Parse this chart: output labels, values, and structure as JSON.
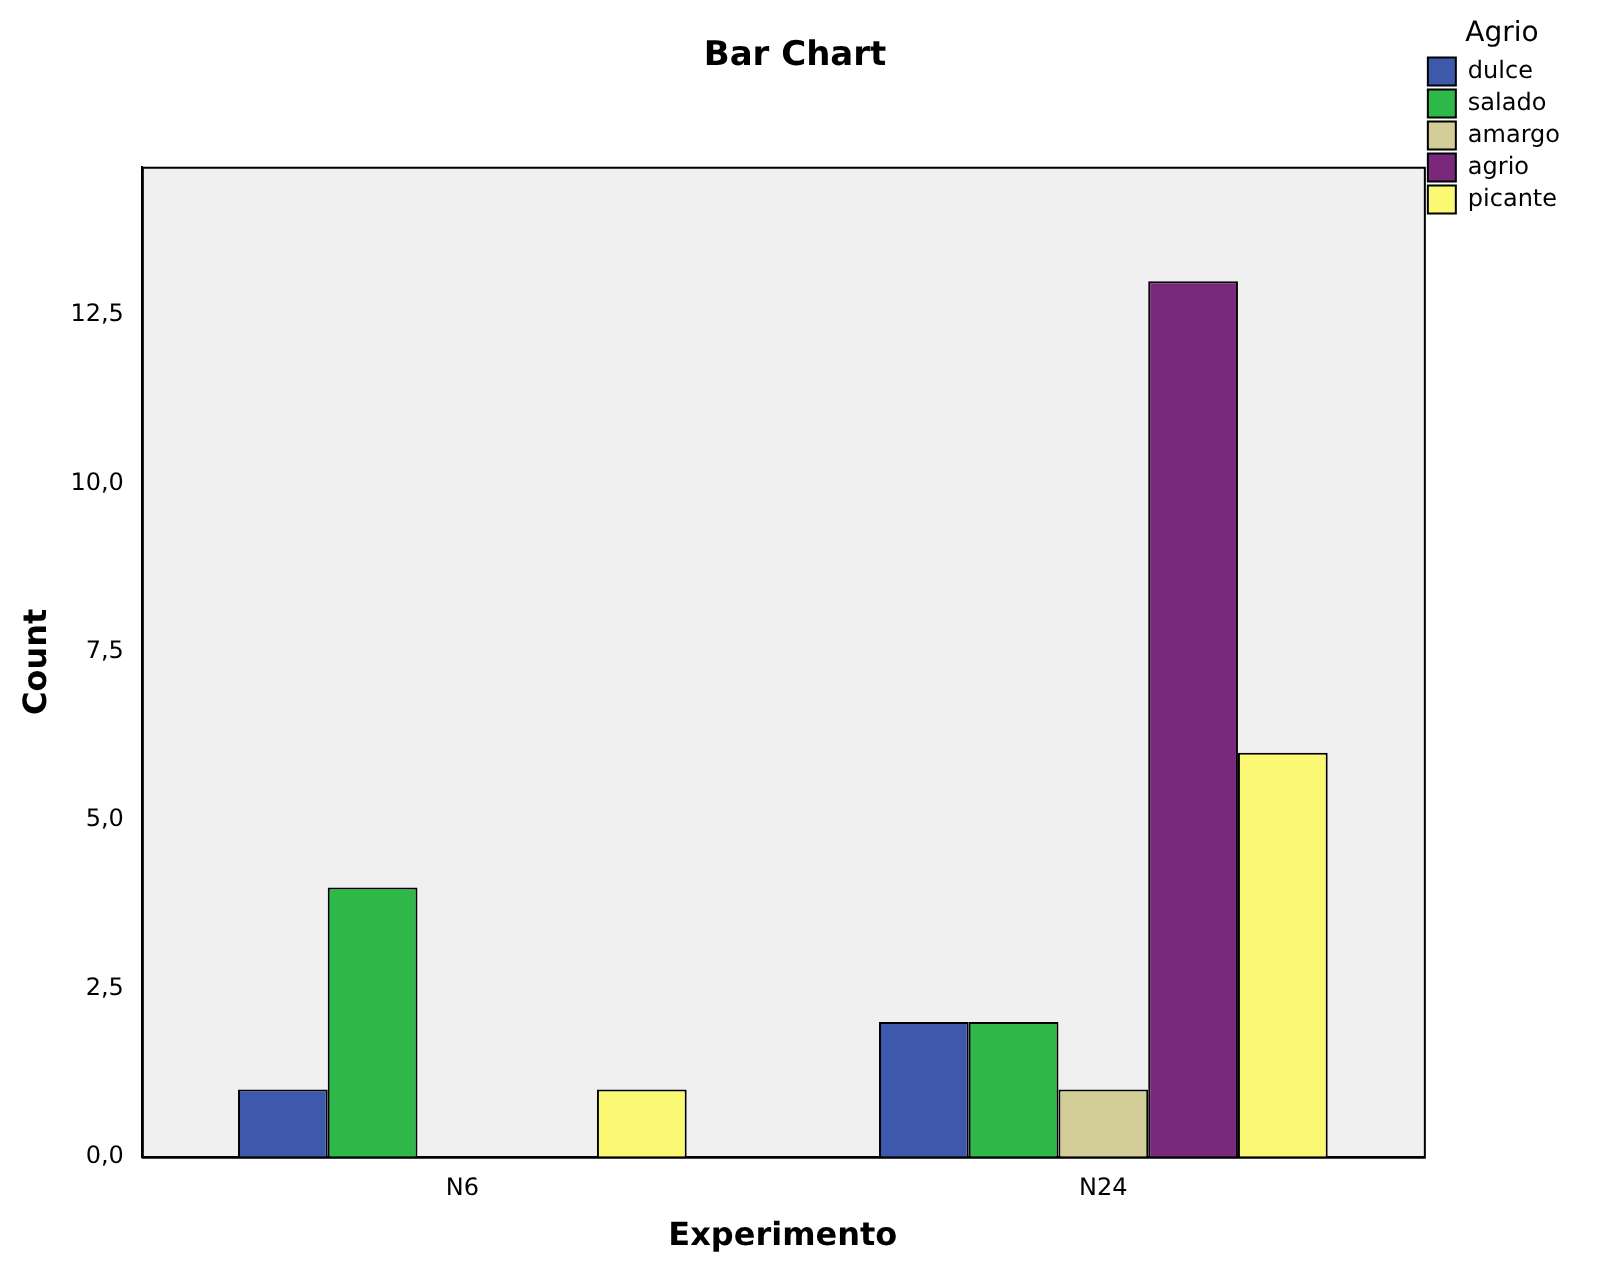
{
  "chart_data": {
    "type": "bar",
    "title": "Bar Chart",
    "xlabel": "Experimento",
    "ylabel": "Count",
    "legend_title": "Agrio",
    "categories": [
      "N6",
      "N24"
    ],
    "series": [
      {
        "name": "dulce",
        "color": "#3e58ac",
        "values": [
          1,
          2
        ]
      },
      {
        "name": "salado",
        "color": "#2eb848",
        "values": [
          4,
          2
        ]
      },
      {
        "name": "amargo",
        "color": "#d3ce97",
        "values": [
          0,
          1
        ]
      },
      {
        "name": "agrio",
        "color": "#79287c",
        "values": [
          0,
          13
        ]
      },
      {
        "name": "picante",
        "color": "#fbf873",
        "values": [
          1,
          6
        ]
      }
    ],
    "ylim": [
      0,
      14.7
    ],
    "yticks": [
      {
        "value": 0,
        "label": "0,0"
      },
      {
        "value": 2.5,
        "label": "2,5"
      },
      {
        "value": 5,
        "label": "5,0"
      },
      {
        "value": 7.5,
        "label": "7,5"
      },
      {
        "value": 10,
        "label": "10,0"
      },
      {
        "value": 12.5,
        "label": "12,5"
      }
    ],
    "grid": false,
    "legend": "top right"
  }
}
